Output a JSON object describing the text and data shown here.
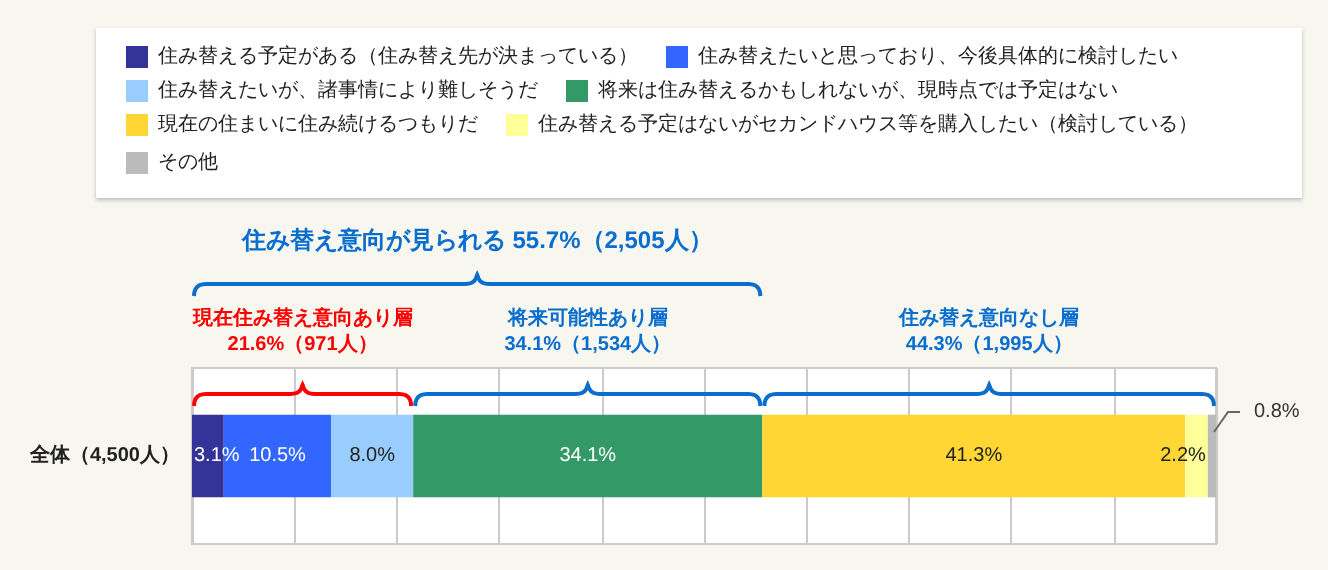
{
  "chart_data": {
    "type": "bar",
    "orientation": "horizontal",
    "stacked": true,
    "categories": [
      "全体（4,500人）"
    ],
    "series": [
      {
        "name": "住み替える予定がある（住み替え先が決まっている）",
        "color": "#333399",
        "values": [
          3.1
        ],
        "value_labels": [
          "3.1%"
        ]
      },
      {
        "name": "住み替えたいと思っており、今後具体的に検討したい",
        "color": "#3366ff",
        "values": [
          10.5
        ],
        "value_labels": [
          "10.5%"
        ]
      },
      {
        "name": "住み替えたいが、諸事情により難しそうだ",
        "color": "#99ccff",
        "values": [
          8.0
        ],
        "value_labels": [
          "8.0%"
        ]
      },
      {
        "name": "将来は住み替えるかもしれないが、現時点では予定はない",
        "color": "#339966",
        "values": [
          34.1
        ],
        "value_labels": [
          "34.1%"
        ]
      },
      {
        "name": "現在の住まいに住み続けるつもりだ",
        "color": "#ffd633",
        "values": [
          41.3
        ],
        "value_labels": [
          "41.3%"
        ]
      },
      {
        "name": "住み替える予定はないがセカンドハウス等を購入したい（検討している）",
        "color": "#ffff99",
        "values": [
          2.2
        ],
        "value_labels": [
          "2.2%"
        ]
      },
      {
        "name": "その他",
        "color": "#bbbbbb",
        "values": [
          0.8
        ],
        "value_labels": [
          "0.8%"
        ]
      }
    ],
    "xlim": [
      0,
      100
    ],
    "xticks": [
      0,
      10,
      20,
      30,
      40,
      50,
      60,
      70,
      80,
      90,
      100
    ],
    "tick_labels": "y",
    "grid": "x",
    "legend": "top",
    "annotations": [
      "住み替え意向が見られる 55.7%（2,505人）",
      "現在住み替え意向あり層\n21.6%（971人）",
      "将来可能性あり層\n34.1%（1,534人）",
      "住み替え意向なし層\n44.3%（1,995人）"
    ]
  }
}
